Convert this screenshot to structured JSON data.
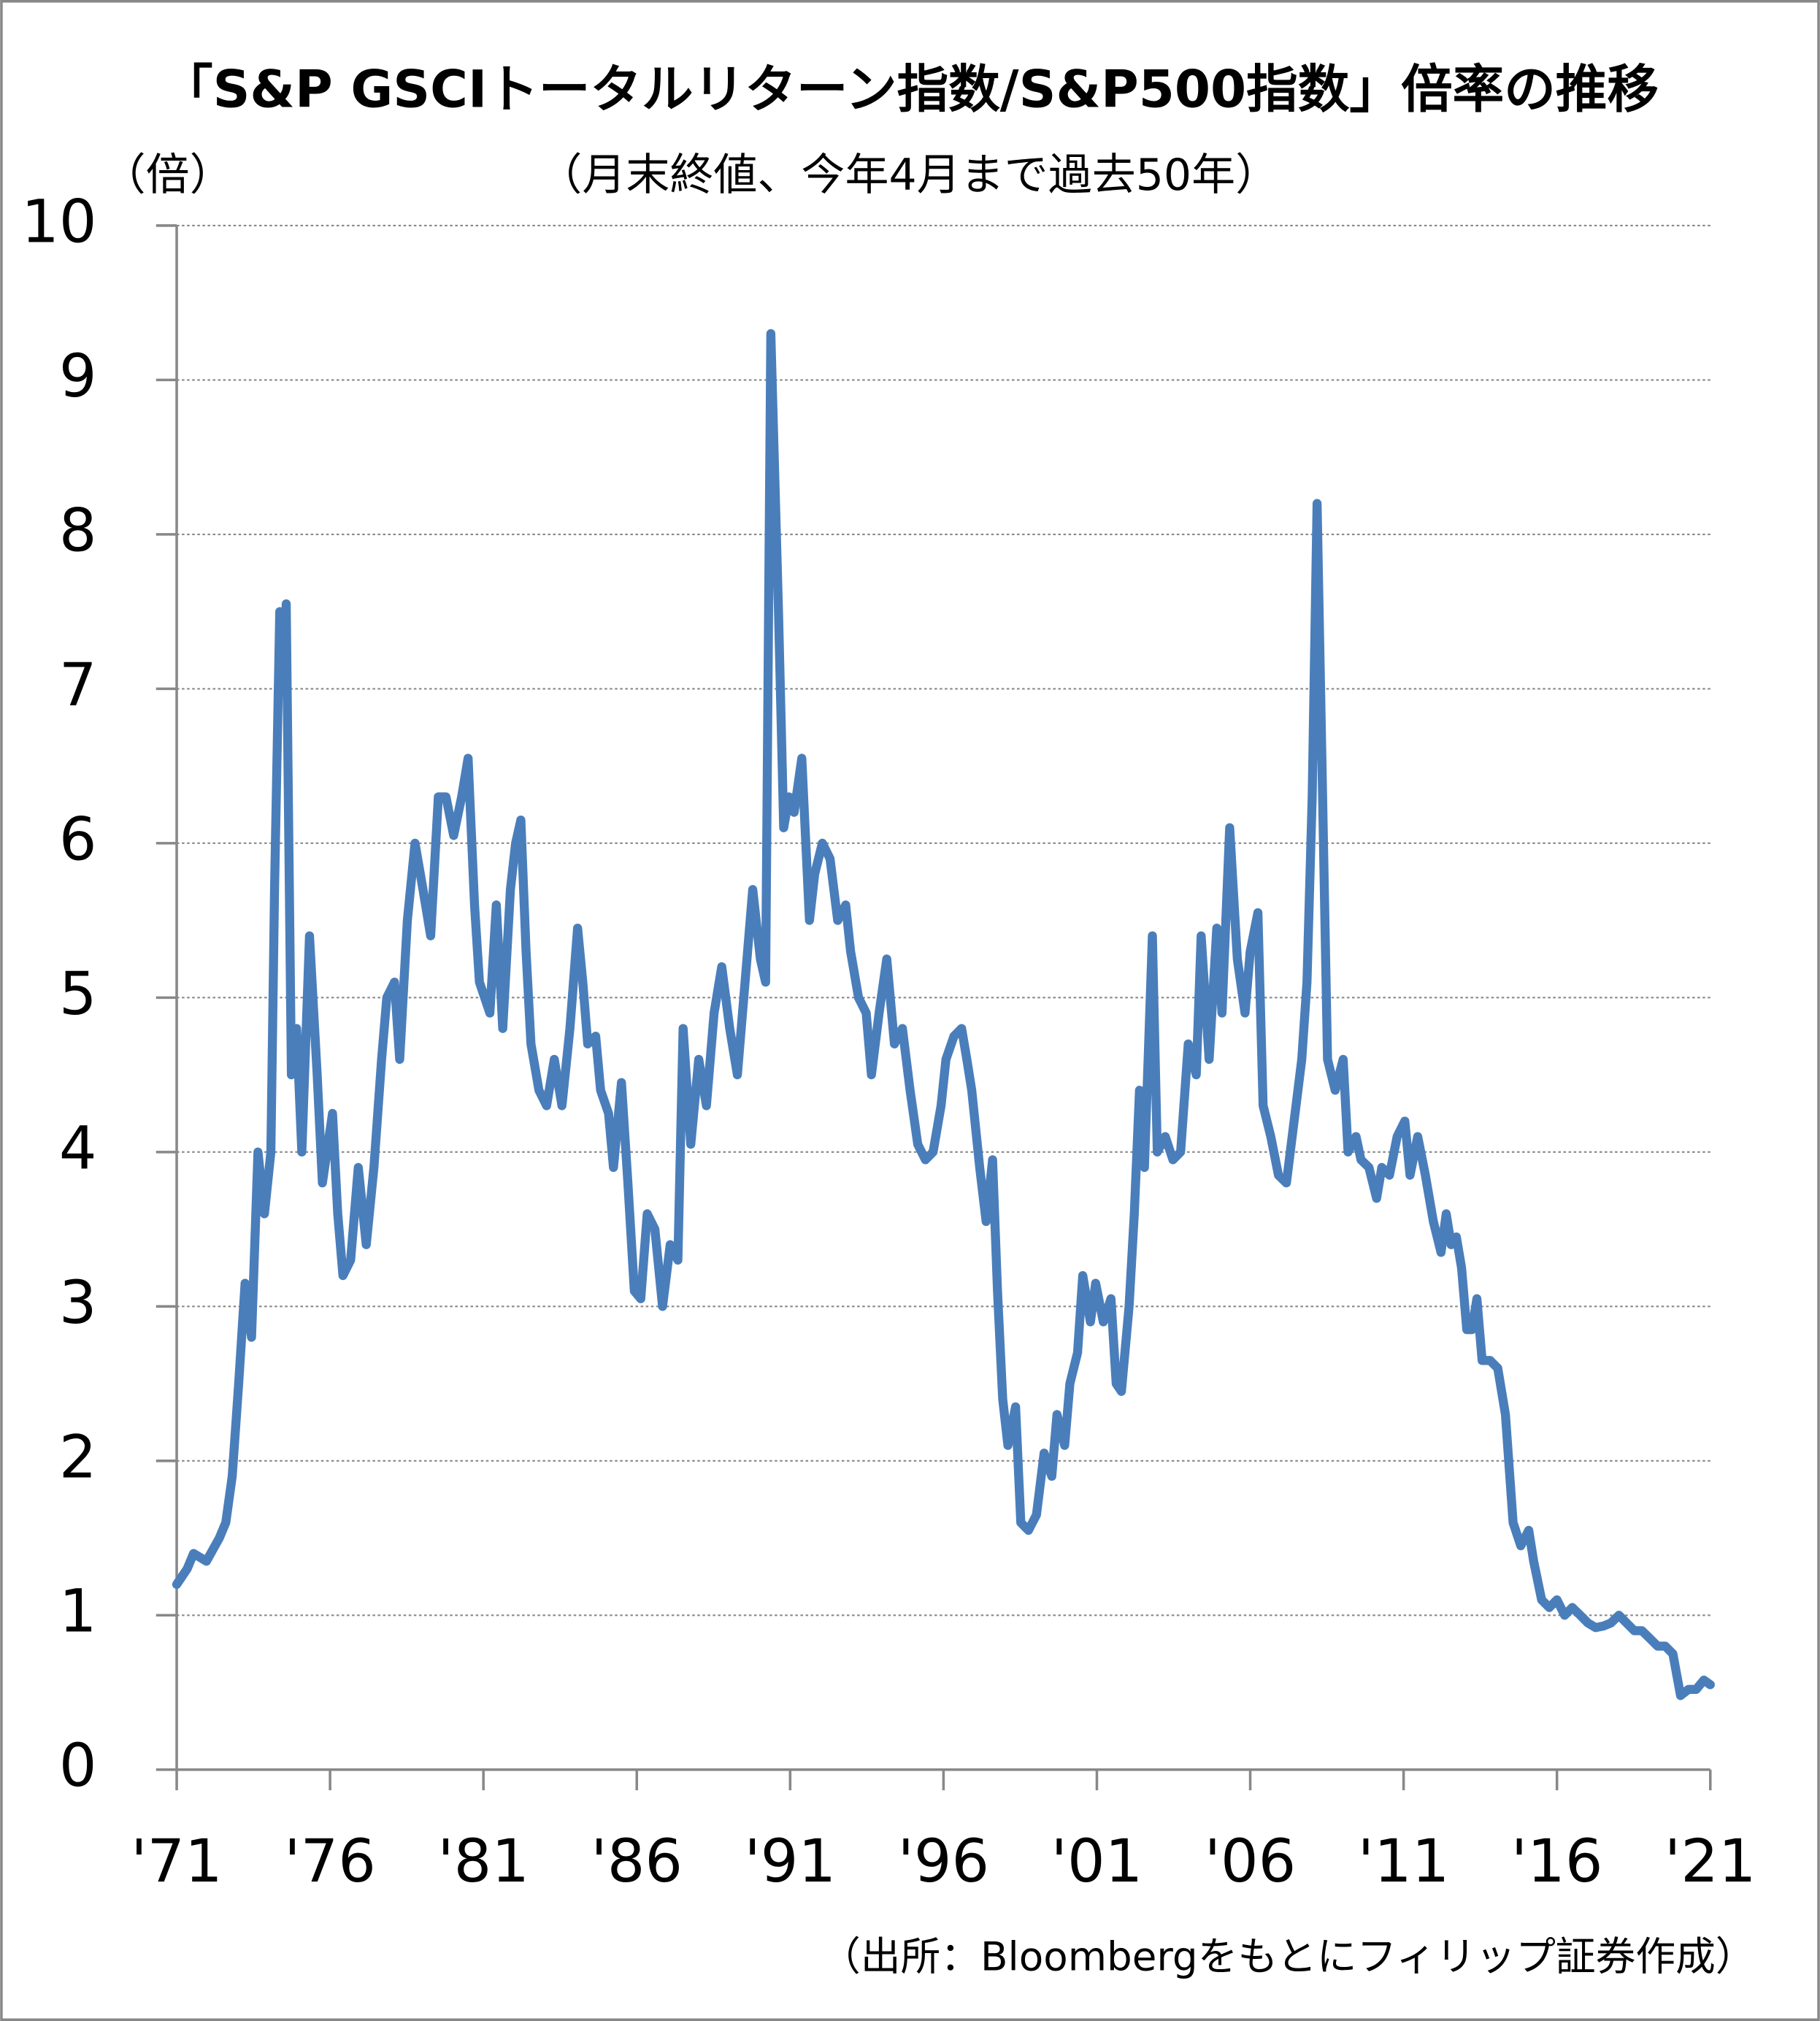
{
  "chart_data": {
    "type": "line",
    "title": "「S&P GSCIトータルリターン指数/S&P500指数」倍率の推移",
    "subtitle": "（月末終値、今年4月まで過去50年）",
    "y_label": "（倍）",
    "source": "（出所：Bloombergをもとにフィリップ証券作成）",
    "color": "#4a7ebb",
    "grid": true,
    "xlim": [
      1971,
      2021
    ],
    "ylim": [
      0,
      10
    ],
    "yticks": [
      0,
      1,
      2,
      3,
      4,
      5,
      6,
      7,
      8,
      9,
      10
    ],
    "xticks": [
      {
        "value": 1971,
        "label": "'71"
      },
      {
        "value": 1976,
        "label": "'76"
      },
      {
        "value": 1981,
        "label": "'81"
      },
      {
        "value": 1986,
        "label": "'86"
      },
      {
        "value": 1991,
        "label": "'91"
      },
      {
        "value": 1996,
        "label": "'96"
      },
      {
        "value": 2001,
        "label": "'01"
      },
      {
        "value": 2006,
        "label": "'06"
      },
      {
        "value": 2011,
        "label": "'11"
      },
      {
        "value": 2016,
        "label": "'16"
      },
      {
        "value": 2021,
        "label": "'21"
      }
    ],
    "x": [
      1971.0,
      1971.34,
      1971.55,
      1971.97,
      1972.39,
      1972.6,
      1972.81,
      1973.02,
      1973.23,
      1973.44,
      1973.65,
      1973.86,
      1974.07,
      1974.19,
      1974.36,
      1974.49,
      1974.57,
      1974.74,
      1974.91,
      1975.08,
      1975.33,
      1975.58,
      1975.75,
      1976.08,
      1976.25,
      1976.42,
      1976.67,
      1976.92,
      1977.18,
      1977.43,
      1977.68,
      1977.85,
      1978.1,
      1978.27,
      1978.52,
      1978.77,
      1979.03,
      1979.28,
      1979.53,
      1979.78,
      1980.03,
      1980.29,
      1980.5,
      1980.71,
      1980.87,
      1981.04,
      1981.21,
      1981.42,
      1981.63,
      1981.88,
      1982.05,
      1982.22,
      1982.39,
      1982.55,
      1982.81,
      1983.06,
      1983.31,
      1983.56,
      1983.82,
      1984.07,
      1984.24,
      1984.4,
      1984.66,
      1984.82,
      1985.08,
      1985.24,
      1985.5,
      1985.71,
      1985.92,
      1986.13,
      1986.34,
      1986.59,
      1986.84,
      1987.09,
      1987.34,
      1987.51,
      1987.76,
      1988.02,
      1988.27,
      1988.52,
      1988.77,
      1989.03,
      1989.28,
      1989.53,
      1989.78,
      1990.03,
      1990.2,
      1990.37,
      1990.62,
      1990.79,
      1990.96,
      1991.13,
      1991.38,
      1991.63,
      1991.8,
      1992.05,
      1992.3,
      1992.55,
      1992.81,
      1992.97,
      1993.23,
      1993.48,
      1993.65,
      1993.9,
      1994.15,
      1994.4,
      1994.66,
      1994.91,
      1995.16,
      1995.41,
      1995.66,
      1995.92,
      1996.08,
      1996.34,
      1996.59,
      1996.76,
      1996.92,
      1997.18,
      1997.39,
      1997.6,
      1997.76,
      1997.93,
      1998.1,
      1998.35,
      1998.52,
      1998.77,
      1999.03,
      1999.28,
      1999.53,
      1999.7,
      1999.95,
      2000.12,
      2000.37,
      2000.54,
      2000.79,
      2000.96,
      2001.21,
      2001.46,
      2001.63,
      2001.8,
      2002.05,
      2002.22,
      2002.39,
      2002.55,
      2002.81,
      2002.97,
      2003.23,
      2003.48,
      2003.73,
      2003.98,
      2004.24,
      2004.4,
      2004.66,
      2004.91,
      2005.08,
      2005.33,
      2005.58,
      2005.83,
      2006.0,
      2006.25,
      2006.42,
      2006.67,
      2006.92,
      2007.18,
      2007.43,
      2007.68,
      2007.85,
      2008.02,
      2008.18,
      2008.35,
      2008.52,
      2008.77,
      2009.03,
      2009.19,
      2009.45,
      2009.61,
      2009.87,
      2010.12,
      2010.29,
      2010.54,
      2010.79,
      2011.04,
      2011.21,
      2011.46,
      2011.71,
      2011.97,
      2012.22,
      2012.39,
      2012.55,
      2012.72,
      2012.89,
      2013.06,
      2013.23,
      2013.39,
      2013.56,
      2013.82,
      2014.07,
      2014.32,
      2014.57,
      2014.82,
      2015.08,
      2015.24,
      2015.5,
      2015.75,
      2016.0,
      2016.25,
      2016.5,
      2016.76,
      2017.01,
      2017.26,
      2017.51,
      2017.76,
      2018.02,
      2018.27,
      2018.52,
      2018.77,
      2019.03,
      2019.28,
      2019.53,
      2019.78,
      2020.03,
      2020.29,
      2020.54,
      2020.79,
      2021.0
    ],
    "values": [
      1.2,
      1.3,
      1.4,
      1.35,
      1.5,
      1.6,
      1.9,
      2.5,
      3.15,
      2.8,
      4.0,
      3.6,
      4.0,
      5.7,
      7.5,
      7.0,
      7.55,
      4.5,
      4.8,
      4.0,
      5.4,
      4.5,
      3.8,
      4.25,
      3.6,
      3.2,
      3.3,
      3.9,
      3.4,
      3.9,
      4.6,
      5.0,
      5.1,
      4.6,
      5.5,
      6.0,
      5.7,
      5.4,
      6.3,
      6.3,
      6.05,
      6.3,
      6.55,
      5.6,
      5.1,
      5.0,
      4.9,
      5.6,
      4.8,
      5.7,
      6.0,
      6.15,
      5.3,
      4.7,
      4.4,
      4.3,
      4.6,
      4.3,
      4.8,
      5.45,
      5.1,
      4.7,
      4.75,
      4.4,
      4.25,
      3.9,
      4.45,
      3.8,
      3.1,
      3.05,
      3.6,
      3.5,
      3.0,
      3.4,
      3.3,
      4.8,
      4.05,
      4.6,
      4.3,
      4.9,
      5.2,
      4.8,
      4.5,
      5.1,
      5.7,
      5.25,
      5.1,
      9.3,
      7.5,
      6.1,
      6.3,
      6.2,
      6.55,
      5.5,
      5.8,
      6.0,
      5.9,
      5.5,
      5.6,
      5.3,
      5.0,
      4.9,
      4.5,
      4.9,
      5.25,
      4.7,
      4.8,
      4.4,
      4.05,
      3.95,
      4.0,
      4.3,
      4.6,
      4.75,
      4.8,
      4.6,
      4.4,
      3.9,
      3.55,
      3.95,
      3.1,
      2.4,
      2.1,
      2.35,
      1.6,
      1.55,
      1.65,
      2.05,
      1.9,
      2.3,
      2.1,
      2.5,
      2.7,
      3.2,
      2.9,
      3.15,
      2.9,
      3.05,
      2.5,
      2.45,
      3.0,
      3.6,
      4.4,
      3.9,
      5.4,
      4.0,
      4.1,
      3.95,
      4.0,
      4.7,
      4.5,
      5.4,
      4.6,
      5.45,
      4.9,
      6.1,
      5.25,
      4.9,
      5.3,
      5.55,
      4.3,
      4.1,
      3.85,
      3.8,
      4.2,
      4.6,
      5.1,
      6.3,
      8.2,
      6.4,
      4.6,
      4.4,
      4.6,
      4.0,
      4.1,
      3.95,
      3.9,
      3.7,
      3.9,
      3.85,
      4.1,
      4.2,
      3.85,
      4.1,
      3.85,
      3.55,
      3.35,
      3.6,
      3.4,
      3.45,
      3.25,
      2.85,
      2.85,
      3.05,
      2.65,
      2.65,
      2.6,
      2.3,
      1.6,
      1.45,
      1.55,
      1.35,
      1.1,
      1.05,
      1.1,
      1.0,
      1.05,
      1.0,
      0.95,
      0.92,
      0.93,
      0.95,
      1.0,
      0.95,
      0.9,
      0.9,
      0.85,
      0.8,
      0.8,
      0.75,
      0.48,
      0.52,
      0.52,
      0.58,
      0.55
    ]
  }
}
